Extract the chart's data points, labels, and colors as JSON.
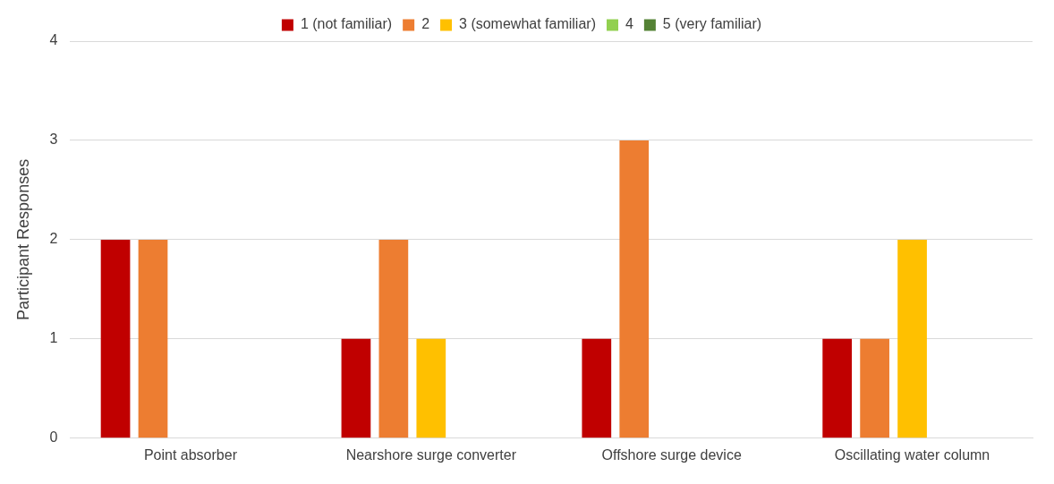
{
  "chart_data": {
    "type": "bar",
    "categories": [
      "Point absorber",
      "Nearshore surge converter",
      "Offshore surge device",
      "Oscillating water column"
    ],
    "series": [
      {
        "name": "1 (not familiar)",
        "color": "#c00000",
        "values": [
          2,
          1,
          1,
          1
        ]
      },
      {
        "name": "2",
        "color": "#ed7d31",
        "values": [
          2,
          2,
          3,
          1
        ]
      },
      {
        "name": "3 (somewhat familiar)",
        "color": "#ffc000",
        "values": [
          0,
          1,
          0,
          2
        ]
      },
      {
        "name": "4",
        "color": "#92d050",
        "values": [
          0,
          0,
          0,
          0
        ]
      },
      {
        "name": "5 (very familiar)",
        "color": "#548235",
        "values": [
          0,
          0,
          0,
          0
        ]
      }
    ],
    "ylabel": "Participant Responses",
    "ylim": [
      0,
      4
    ],
    "yticks": [
      0,
      1,
      2,
      3,
      4
    ],
    "grid": "y",
    "legend": "top"
  }
}
